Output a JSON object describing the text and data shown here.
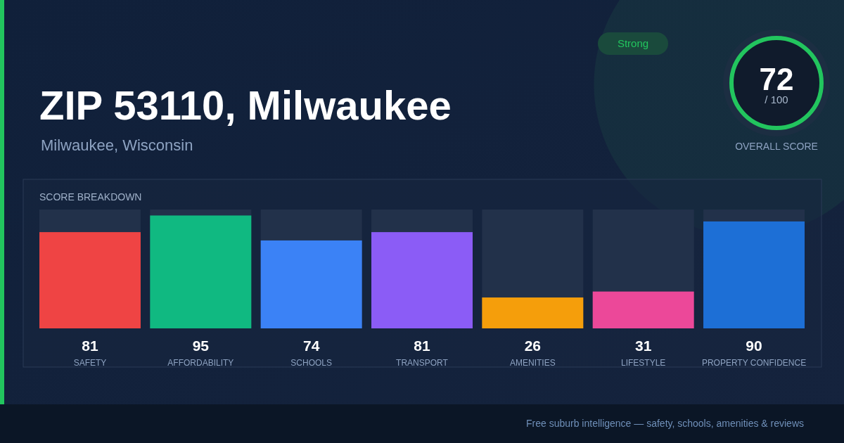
{
  "chart_data": [
    {
      "type": "bar",
      "title": "ZIP 53110, Milwaukee",
      "subtitle": "Milwaukee, Wisconsin",
      "categories": [
        "SAFETY",
        "AFFORDABILITY",
        "SCHOOLS",
        "TRANSPORT",
        "AMENITIES",
        "LIFESTYLE",
        "PROPERTY CONFIDENCE"
      ],
      "values": [
        81,
        95,
        74,
        81,
        26,
        31,
        90
      ],
      "colors": [
        "#ef4444",
        "#10b981",
        "#3b82f6",
        "#8b5cf6",
        "#f59e0b",
        "#ec4899",
        "#1d6fd6"
      ],
      "ylim": [
        0,
        100
      ],
      "tick_labels": "x",
      "data_labels": true,
      "annotations": [
        "SCORE BREAKDOWN",
        "Free suburb intelligence — safety, schools, amenities & reviews"
      ]
    },
    {
      "type": "other",
      "title": "OVERALL SCORE",
      "annotations": [
        "72",
        "/ 100",
        "Strong"
      ]
    }
  ]
}
